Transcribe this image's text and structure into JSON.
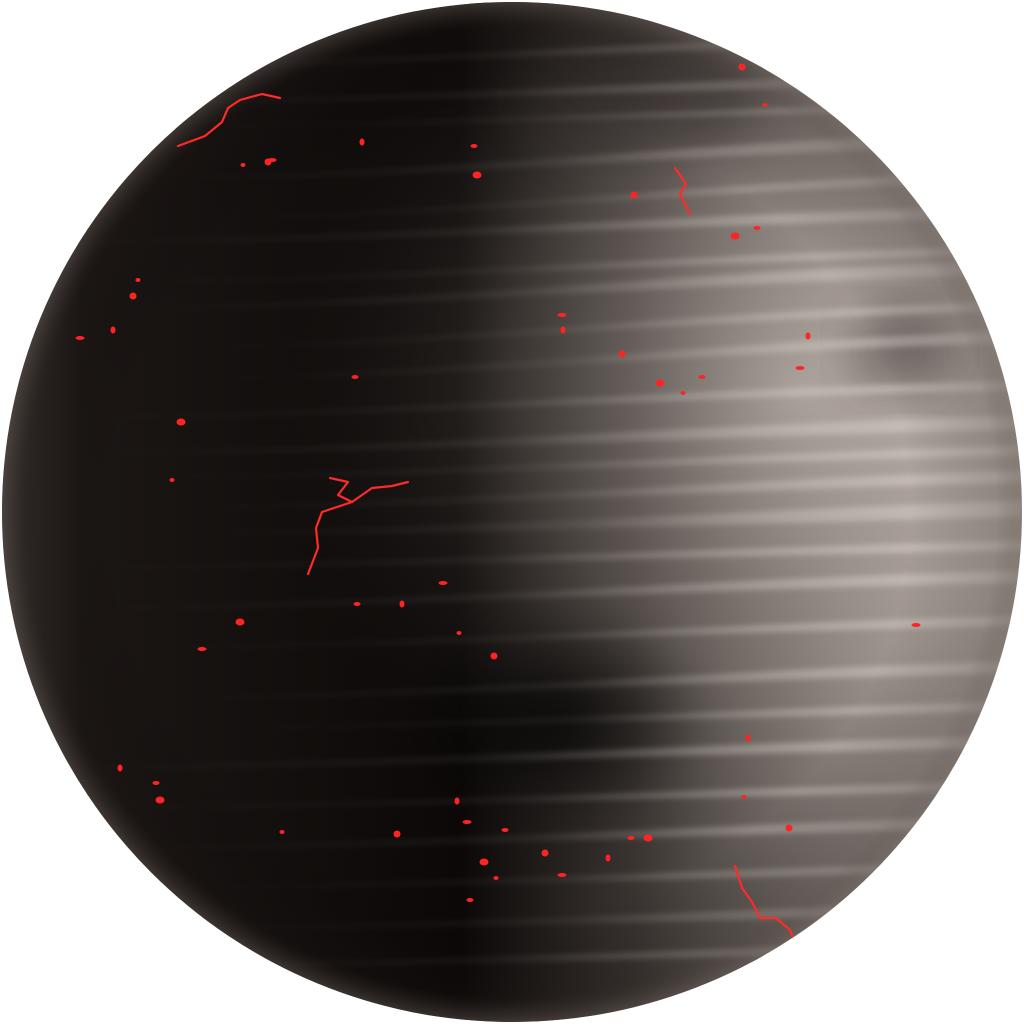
{
  "scene": {
    "subject": "planet-illustration",
    "colors": {
      "background": "#ffffff",
      "planet_dark": "#0b0807",
      "planet_mid": "#2a2523",
      "planet_light": "#b7aca3",
      "band_light": "#d8d0ca",
      "lava": "#ff1f1f"
    }
  }
}
